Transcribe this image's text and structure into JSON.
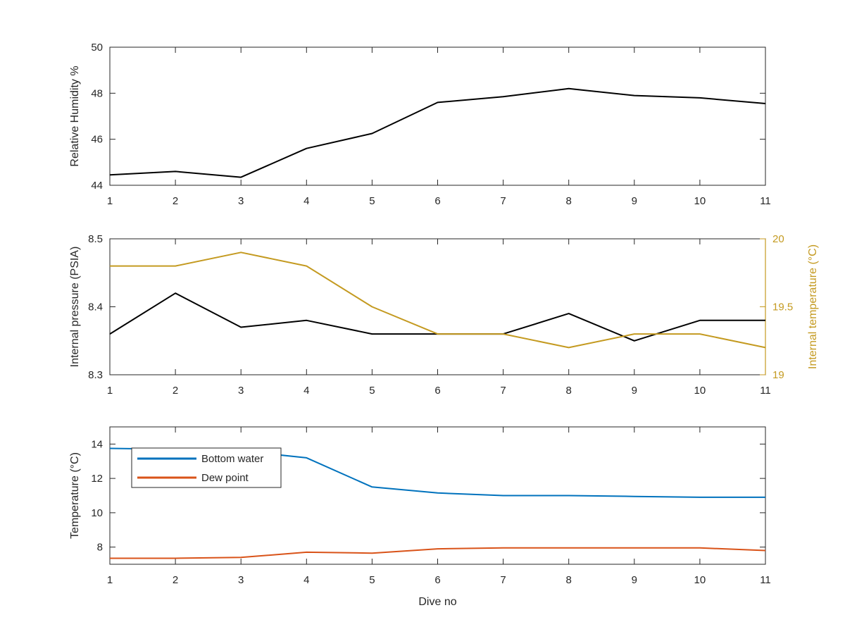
{
  "chart_data": [
    {
      "type": "line",
      "x": [
        1,
        2,
        3,
        4,
        5,
        6,
        7,
        8,
        9,
        10,
        11
      ],
      "xlim": [
        1,
        11
      ],
      "xticks": [
        "1",
        "2",
        "3",
        "4",
        "5",
        "6",
        "7",
        "8",
        "9",
        "10",
        "11"
      ],
      "xlabel": "",
      "ylabel": "Relative Humidity %",
      "ylim": [
        44,
        50
      ],
      "yticks": [
        "44",
        "46",
        "48",
        "50"
      ],
      "grid": false,
      "series": [
        {
          "values": [
            44.45,
            44.6,
            44.35,
            45.6,
            46.25,
            47.6,
            47.85,
            48.2,
            47.9,
            47.8,
            47.55
          ],
          "color": "#000000"
        }
      ]
    },
    {
      "type": "line",
      "x": [
        1,
        2,
        3,
        4,
        5,
        6,
        7,
        8,
        9,
        10,
        11
      ],
      "xlim": [
        1,
        11
      ],
      "xticks": [
        "1",
        "2",
        "3",
        "4",
        "5",
        "6",
        "7",
        "8",
        "9",
        "10",
        "11"
      ],
      "xlabel": "",
      "ylabel": "Internal pressure (PSIA)",
      "ylim": [
        8.3,
        8.5
      ],
      "yticks": [
        "8.3",
        "8.4",
        "8.5"
      ],
      "y2label": "Internal temperature (°C)",
      "y2lim": [
        19,
        20
      ],
      "y2ticks": [
        "19",
        "19.5",
        "20"
      ],
      "grid": false,
      "series": [
        {
          "axis": "left",
          "values": [
            8.36,
            8.42,
            8.37,
            8.38,
            8.36,
            8.36,
            8.36,
            8.39,
            8.35,
            8.38,
            8.38
          ],
          "color": "#000000"
        },
        {
          "axis": "right",
          "values": [
            19.8,
            19.8,
            19.9,
            19.8,
            19.5,
            19.3,
            19.3,
            19.2,
            19.3,
            19.3,
            19.2
          ],
          "color": "#C49A20"
        }
      ]
    },
    {
      "type": "line",
      "x": [
        1,
        2,
        3,
        4,
        5,
        6,
        7,
        8,
        9,
        10,
        11
      ],
      "xlim": [
        1,
        11
      ],
      "xticks": [
        "1",
        "2",
        "3",
        "4",
        "5",
        "6",
        "7",
        "8",
        "9",
        "10",
        "11"
      ],
      "xlabel": "Dive no",
      "ylabel": "Temperature (°C)",
      "ylim": [
        7,
        15
      ],
      "yticks": [
        "8",
        "10",
        "12",
        "14"
      ],
      "grid": false,
      "legend_position": "top-left",
      "series": [
        {
          "name": "Bottom water",
          "values": [
            13.75,
            13.7,
            13.6,
            13.2,
            11.5,
            11.15,
            11.0,
            11.0,
            10.95,
            10.9,
            10.9
          ],
          "color": "#0072BD"
        },
        {
          "name": "Dew point",
          "values": [
            7.35,
            7.35,
            7.4,
            7.7,
            7.65,
            7.9,
            7.95,
            7.95,
            7.95,
            7.95,
            7.8
          ],
          "color": "#D95319"
        }
      ]
    }
  ]
}
